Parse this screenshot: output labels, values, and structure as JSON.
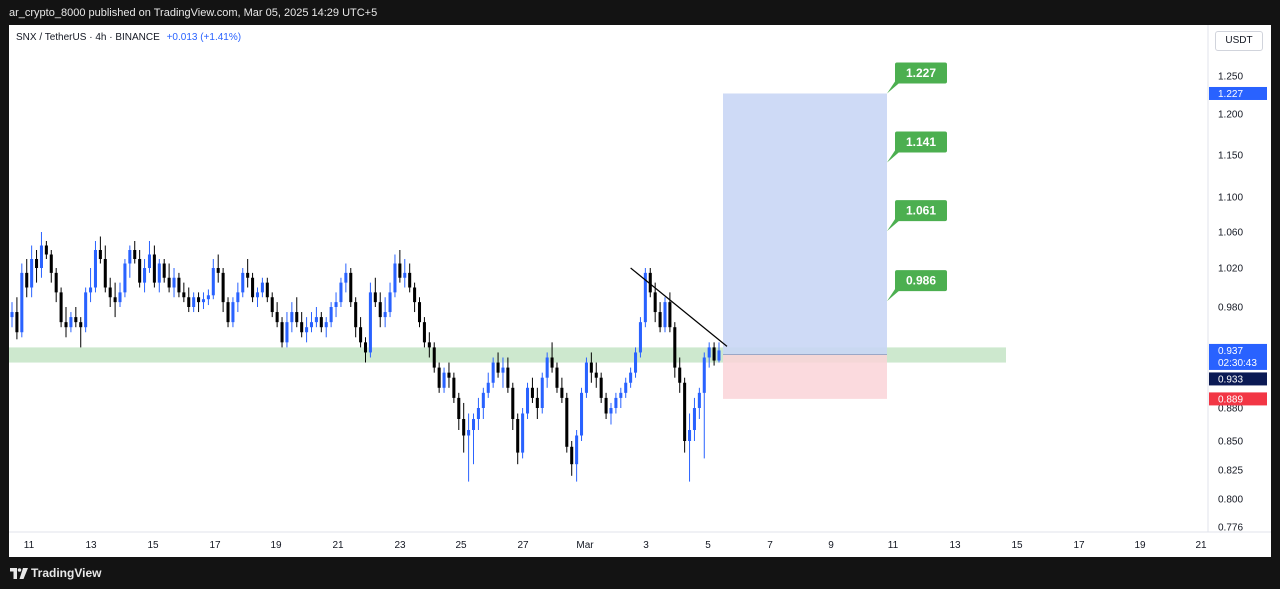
{
  "header": {
    "publish_info": "ar_crypto_8000 published on TradingView.com, Mar 05, 2025 14:29 UTC+5"
  },
  "symbol": {
    "pair": "SNX / TetherUS",
    "interval": "4h",
    "exchange": "BINANCE",
    "change": "+0.013 (+1.41%)"
  },
  "currency_label": "USDT",
  "footer": {
    "brand": "TradingView",
    "logo_icon": "tradingview-logo-icon"
  },
  "colors": {
    "bull": "#2962ff",
    "bear": "#000000",
    "target": "#4caf50",
    "price_label": "#2962ff",
    "stop_label": "#f23645",
    "support_zone": "#c8e6c9",
    "profit_zone": "#c9d6f5",
    "risk_zone": "#fad4d8"
  },
  "chart_data": {
    "type": "candlestick",
    "x_tick_labels": [
      "11",
      "13",
      "15",
      "17",
      "19",
      "21",
      "23",
      "25",
      "27",
      "Mar",
      "3",
      "5",
      "7",
      "9",
      "11",
      "13",
      "15",
      "17",
      "19",
      "21"
    ],
    "y_tick_labels": [
      "1.250",
      "1.200",
      "1.150",
      "1.100",
      "1.060",
      "1.020",
      "0.980",
      "0.880",
      "0.850",
      "0.825",
      "0.800",
      "0.776"
    ],
    "ylim": [
      0.776,
      1.27
    ],
    "current_price": "0.937",
    "countdown": "02:30:43",
    "last_close_label": "0.933",
    "stop_loss": "0.889",
    "entry": 0.933,
    "targets": [
      "1.227",
      "1.141",
      "1.061",
      "0.986"
    ],
    "support_zone": [
      0.925,
      0.94
    ],
    "candles": [
      [
        0.97,
        0.985,
        0.96,
        0.975
      ],
      [
        0.975,
        0.99,
        0.948,
        0.955
      ],
      [
        0.955,
        1.025,
        0.95,
        1.015
      ],
      [
        1.015,
        1.03,
        0.99,
        1.0
      ],
      [
        1.0,
        1.045,
        0.99,
        1.03
      ],
      [
        1.03,
        1.04,
        1.005,
        1.02
      ],
      [
        1.02,
        1.06,
        1.01,
        1.045
      ],
      [
        1.045,
        1.05,
        1.03,
        1.035
      ],
      [
        1.035,
        1.04,
        1.005,
        1.015
      ],
      [
        1.015,
        1.02,
        0.985,
        0.995
      ],
      [
        0.995,
        1.0,
        0.96,
        0.965
      ],
      [
        0.965,
        0.98,
        0.95,
        0.96
      ],
      [
        0.96,
        0.975,
        0.955,
        0.97
      ],
      [
        0.97,
        0.98,
        0.96,
        0.965
      ],
      [
        0.965,
        0.97,
        0.94,
        0.96
      ],
      [
        0.96,
        1.0,
        0.955,
        0.995
      ],
      [
        0.995,
        1.02,
        0.985,
        1.0
      ],
      [
        1.0,
        1.05,
        0.995,
        1.04
      ],
      [
        1.04,
        1.055,
        1.025,
        1.03
      ],
      [
        1.03,
        1.045,
        0.995,
        1.0
      ],
      [
        1.0,
        1.01,
        0.98,
        0.99
      ],
      [
        0.99,
        1.005,
        0.97,
        0.985
      ],
      [
        0.985,
        1.005,
        0.98,
        0.995
      ],
      [
        0.995,
        1.03,
        0.99,
        1.025
      ],
      [
        1.025,
        1.045,
        1.01,
        1.04
      ],
      [
        1.04,
        1.05,
        1.025,
        1.03
      ],
      [
        1.03,
        1.04,
        1.0,
        1.005
      ],
      [
        1.005,
        1.03,
        0.995,
        1.02
      ],
      [
        1.02,
        1.05,
        1.015,
        1.035
      ],
      [
        1.035,
        1.045,
        1.0,
        1.005
      ],
      [
        1.005,
        1.03,
        0.995,
        1.025
      ],
      [
        1.025,
        1.03,
        1.005,
        1.01
      ],
      [
        1.01,
        1.025,
        0.995,
        1.0
      ],
      [
        1.0,
        1.02,
        0.99,
        1.01
      ],
      [
        1.01,
        1.015,
        0.99,
        0.995
      ],
      [
        0.995,
        1.005,
        0.985,
        0.99
      ],
      [
        0.99,
        1.0,
        0.975,
        0.98
      ],
      [
        0.98,
        0.995,
        0.975,
        0.99
      ],
      [
        0.99,
        0.995,
        0.975,
        0.985
      ],
      [
        0.985,
        0.995,
        0.978,
        0.988
      ],
      [
        0.988,
        0.998,
        0.982,
        0.992
      ],
      [
        0.992,
        1.03,
        0.988,
        1.02
      ],
      [
        1.02,
        1.035,
        1.005,
        1.015
      ],
      [
        1.015,
        1.02,
        0.975,
        0.985
      ],
      [
        0.985,
        0.99,
        0.96,
        0.965
      ],
      [
        0.965,
        0.99,
        0.96,
        0.985
      ],
      [
        0.985,
        1.005,
        0.975,
        0.995
      ],
      [
        0.995,
        1.02,
        0.99,
        1.015
      ],
      [
        1.015,
        1.03,
        1.0,
        1.01
      ],
      [
        1.01,
        1.015,
        0.985,
        0.99
      ],
      [
        0.99,
        1.0,
        0.98,
        0.995
      ],
      [
        0.995,
        1.01,
        0.99,
        1.005
      ],
      [
        1.005,
        1.01,
        0.985,
        0.99
      ],
      [
        0.99,
        0.995,
        0.97,
        0.975
      ],
      [
        0.975,
        0.985,
        0.96,
        0.965
      ],
      [
        0.965,
        0.97,
        0.94,
        0.945
      ],
      [
        0.945,
        0.975,
        0.94,
        0.965
      ],
      [
        0.965,
        0.985,
        0.955,
        0.975
      ],
      [
        0.975,
        0.99,
        0.96,
        0.965
      ],
      [
        0.965,
        0.975,
        0.95,
        0.955
      ],
      [
        0.955,
        0.97,
        0.945,
        0.96
      ],
      [
        0.96,
        0.975,
        0.955,
        0.965
      ],
      [
        0.965,
        0.98,
        0.96,
        0.97
      ],
      [
        0.97,
        0.975,
        0.955,
        0.96
      ],
      [
        0.96,
        0.97,
        0.95,
        0.965
      ],
      [
        0.965,
        0.985,
        0.96,
        0.98
      ],
      [
        0.98,
        0.995,
        0.97,
        0.985
      ],
      [
        0.985,
        1.01,
        0.98,
        1.005
      ],
      [
        1.005,
        1.025,
        0.995,
        1.015
      ],
      [
        1.015,
        1.02,
        0.98,
        0.985
      ],
      [
        0.985,
        0.99,
        0.95,
        0.96
      ],
      [
        0.96,
        0.97,
        0.94,
        0.945
      ],
      [
        0.945,
        0.95,
        0.925,
        0.935
      ],
      [
        0.935,
        1.005,
        0.93,
        0.995
      ],
      [
        0.995,
        1.01,
        0.98,
        0.985
      ],
      [
        0.985,
        0.995,
        0.96,
        0.97
      ],
      [
        0.97,
        0.99,
        0.96,
        0.975
      ],
      [
        0.975,
        1.005,
        0.97,
        0.995
      ],
      [
        0.995,
        1.035,
        0.99,
        1.025
      ],
      [
        1.025,
        1.04,
        1.005,
        1.01
      ],
      [
        1.01,
        1.03,
        1.0,
        1.015
      ],
      [
        1.015,
        1.025,
        0.995,
        1.0
      ],
      [
        1.0,
        1.005,
        0.975,
        0.985
      ],
      [
        0.985,
        0.99,
        0.96,
        0.965
      ],
      [
        0.965,
        0.97,
        0.94,
        0.945
      ],
      [
        0.945,
        0.955,
        0.93,
        0.94
      ],
      [
        0.94,
        0.945,
        0.915,
        0.92
      ],
      [
        0.92,
        0.925,
        0.895,
        0.9
      ],
      [
        0.9,
        0.92,
        0.895,
        0.915
      ],
      [
        0.915,
        0.925,
        0.9,
        0.91
      ],
      [
        0.91,
        0.915,
        0.885,
        0.89
      ],
      [
        0.89,
        0.895,
        0.86,
        0.87
      ],
      [
        0.87,
        0.885,
        0.84,
        0.855
      ],
      [
        0.855,
        0.875,
        0.815,
        0.86
      ],
      [
        0.86,
        0.875,
        0.83,
        0.87
      ],
      [
        0.87,
        0.89,
        0.86,
        0.88
      ],
      [
        0.88,
        0.9,
        0.87,
        0.895
      ],
      [
        0.895,
        0.915,
        0.89,
        0.905
      ],
      [
        0.905,
        0.93,
        0.9,
        0.925
      ],
      [
        0.925,
        0.935,
        0.91,
        0.915
      ],
      [
        0.915,
        0.93,
        0.9,
        0.92
      ],
      [
        0.92,
        0.93,
        0.895,
        0.9
      ],
      [
        0.9,
        0.905,
        0.86,
        0.87
      ],
      [
        0.87,
        0.875,
        0.83,
        0.84
      ],
      [
        0.84,
        0.88,
        0.835,
        0.875
      ],
      [
        0.875,
        0.905,
        0.87,
        0.9
      ],
      [
        0.9,
        0.91,
        0.885,
        0.89
      ],
      [
        0.89,
        0.9,
        0.87,
        0.88
      ],
      [
        0.88,
        0.915,
        0.875,
        0.91
      ],
      [
        0.91,
        0.935,
        0.9,
        0.93
      ],
      [
        0.93,
        0.945,
        0.915,
        0.92
      ],
      [
        0.92,
        0.925,
        0.895,
        0.9
      ],
      [
        0.9,
        0.91,
        0.885,
        0.89
      ],
      [
        0.89,
        0.895,
        0.84,
        0.845
      ],
      [
        0.845,
        0.85,
        0.82,
        0.83
      ],
      [
        0.83,
        0.86,
        0.815,
        0.855
      ],
      [
        0.855,
        0.9,
        0.85,
        0.895
      ],
      [
        0.895,
        0.93,
        0.89,
        0.925
      ],
      [
        0.925,
        0.935,
        0.905,
        0.915
      ],
      [
        0.915,
        0.925,
        0.9,
        0.91
      ],
      [
        0.91,
        0.915,
        0.885,
        0.89
      ],
      [
        0.89,
        0.895,
        0.87,
        0.875
      ],
      [
        0.875,
        0.885,
        0.865,
        0.88
      ],
      [
        0.88,
        0.895,
        0.875,
        0.89
      ],
      [
        0.89,
        0.9,
        0.88,
        0.895
      ],
      [
        0.895,
        0.91,
        0.89,
        0.905
      ],
      [
        0.905,
        0.92,
        0.9,
        0.915
      ],
      [
        0.915,
        0.94,
        0.91,
        0.935
      ],
      [
        0.935,
        0.97,
        0.93,
        0.965
      ],
      [
        0.965,
        1.02,
        0.96,
        1.015
      ],
      [
        1.015,
        1.02,
        0.99,
        0.995
      ],
      [
        0.995,
        1.005,
        0.965,
        0.975
      ],
      [
        0.975,
        0.985,
        0.955,
        0.96
      ],
      [
        0.96,
        0.99,
        0.955,
        0.985
      ],
      [
        0.985,
        0.995,
        0.955,
        0.96
      ],
      [
        0.96,
        0.965,
        0.91,
        0.92
      ],
      [
        0.92,
        0.93,
        0.895,
        0.905
      ],
      [
        0.905,
        0.91,
        0.84,
        0.85
      ],
      [
        0.85,
        0.875,
        0.815,
        0.86
      ],
      [
        0.86,
        0.89,
        0.85,
        0.88
      ],
      [
        0.88,
        0.9,
        0.87,
        0.895
      ],
      [
        0.895,
        0.935,
        0.835,
        0.93
      ],
      [
        0.93,
        0.945,
        0.92,
        0.94
      ],
      [
        0.94,
        0.945,
        0.922,
        0.927
      ],
      [
        0.927,
        0.945,
        0.925,
        0.937
      ]
    ]
  }
}
